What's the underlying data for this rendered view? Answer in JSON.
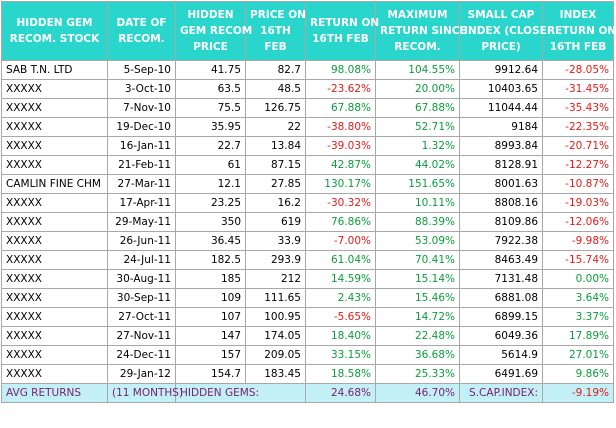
{
  "headers": [
    [
      "HIDDEN GEM",
      "RECOM. STOCK"
    ],
    [
      "DATE OF",
      "RECOM."
    ],
    [
      "HIDDEN",
      "GEM RECOM",
      "PRICE"
    ],
    [
      "PRICE ON",
      "16TH",
      "FEB"
    ],
    [
      "RETURN ON",
      "16TH FEB"
    ],
    [
      "MAXIMUM",
      "RETURN SINCE",
      "RECOM."
    ],
    [
      "SMALL CAP",
      "INDEX (CLOSE",
      "PRICE)"
    ],
    [
      "INDEX",
      "RETURN ON",
      "16TH FEB"
    ]
  ],
  "rows": [
    {
      "stock": "SAB T.N. LTD",
      "date": "5-Sep-10",
      "recom_price": "41.75",
      "price": "82.7",
      "ret": "98.08%",
      "max_ret": "104.55%",
      "index": "9912.64",
      "index_ret": "-28.05%"
    },
    {
      "stock": "XXXXX",
      "date": "3-Oct-10",
      "recom_price": "63.5",
      "price": "48.5",
      "ret": "-23.62%",
      "max_ret": "20.00%",
      "index": "10403.65",
      "index_ret": "-31.45%"
    },
    {
      "stock": "XXXXX",
      "date": "7-Nov-10",
      "recom_price": "75.5",
      "price": "126.75",
      "ret": "67.88%",
      "max_ret": "67.88%",
      "index": "11044.44",
      "index_ret": "-35.43%"
    },
    {
      "stock": "XXXXX",
      "date": "19-Dec-10",
      "recom_price": "35.95",
      "price": "22",
      "ret": "-38.80%",
      "max_ret": "52.71%",
      "index": "9184",
      "index_ret": "-22.35%"
    },
    {
      "stock": "XXXXX",
      "date": "16-Jan-11",
      "recom_price": "22.7",
      "price": "13.84",
      "ret": "-39.03%",
      "max_ret": "1.32%",
      "index": "8993.84",
      "index_ret": "-20.71%"
    },
    {
      "stock": "XXXXX",
      "date": "21-Feb-11",
      "recom_price": "61",
      "price": "87.15",
      "ret": "42.87%",
      "max_ret": "44.02%",
      "index": "8128.91",
      "index_ret": "-12.27%"
    },
    {
      "stock": "CAMLIN FINE CHM",
      "date": "27-Mar-11",
      "recom_price": "12.1",
      "price": "27.85",
      "ret": "130.17%",
      "max_ret": "151.65%",
      "index": "8001.63",
      "index_ret": "-10.87%"
    },
    {
      "stock": "XXXXX",
      "date": "17-Apr-11",
      "recom_price": "23.25",
      "price": "16.2",
      "ret": "-30.32%",
      "max_ret": "10.11%",
      "index": "8808.16",
      "index_ret": "-19.03%"
    },
    {
      "stock": "XXXXX",
      "date": "29-May-11",
      "recom_price": "350",
      "price": "619",
      "ret": "76.86%",
      "max_ret": "88.39%",
      "index": "8109.86",
      "index_ret": "-12.06%"
    },
    {
      "stock": "XXXXX",
      "date": "26-Jun-11",
      "recom_price": "36.45",
      "price": "33.9",
      "ret": "-7.00%",
      "max_ret": "53.09%",
      "index": "7922.38",
      "index_ret": "-9.98%"
    },
    {
      "stock": "XXXXX",
      "date": "24-Jul-11",
      "recom_price": "182.5",
      "price": "293.9",
      "ret": "61.04%",
      "max_ret": "70.41%",
      "index": "8463.49",
      "index_ret": "-15.74%"
    },
    {
      "stock": "XXXXX",
      "date": "30-Aug-11",
      "recom_price": "185",
      "price": "212",
      "ret": "14.59%",
      "max_ret": "15.14%",
      "index": "7131.48",
      "index_ret": "0.00%"
    },
    {
      "stock": "XXXXX",
      "date": "30-Sep-11",
      "recom_price": "109",
      "price": "111.65",
      "ret": "2.43%",
      "max_ret": "15.46%",
      "index": "6881.08",
      "index_ret": "3.64%"
    },
    {
      "stock": "XXXXX",
      "date": "27-Oct-11",
      "recom_price": "107",
      "price": "100.95",
      "ret": "-5.65%",
      "max_ret": "14.72%",
      "index": "6899.15",
      "index_ret": "3.37%"
    },
    {
      "stock": "XXXXX",
      "date": "27-Nov-11",
      "recom_price": "147",
      "price": "174.05",
      "ret": "18.40%",
      "max_ret": "22.48%",
      "index": "6049.36",
      "index_ret": "17.89%"
    },
    {
      "stock": "XXXXX",
      "date": "24-Dec-11",
      "recom_price": "157",
      "price": "209.05",
      "ret": "33.15%",
      "max_ret": "36.68%",
      "index": "5614.9",
      "index_ret": "27.01%"
    },
    {
      "stock": "XXXXX",
      "date": "29-Jan-12",
      "recom_price": "154.7",
      "price": "183.45",
      "ret": "18.58%",
      "max_ret": "25.33%",
      "index": "6491.69",
      "index_ret": "9.86%"
    }
  ],
  "footer": {
    "label": "AVG RETURNS",
    "period": "(11 MONTHS)",
    "gems_label": "HIDDEN GEMS:",
    "avg_return": "24.68%",
    "avg_max_return": "46.70%",
    "index_label": "S.CAP.INDEX:",
    "index_return": "-9.19%"
  },
  "colors": {
    "header_bg": "#2ad6cc",
    "footer_bg": "#c2f0f6",
    "footer_text": "#7a1f6a",
    "positive": "#0b9d3a",
    "negative": "#e21b1b"
  }
}
